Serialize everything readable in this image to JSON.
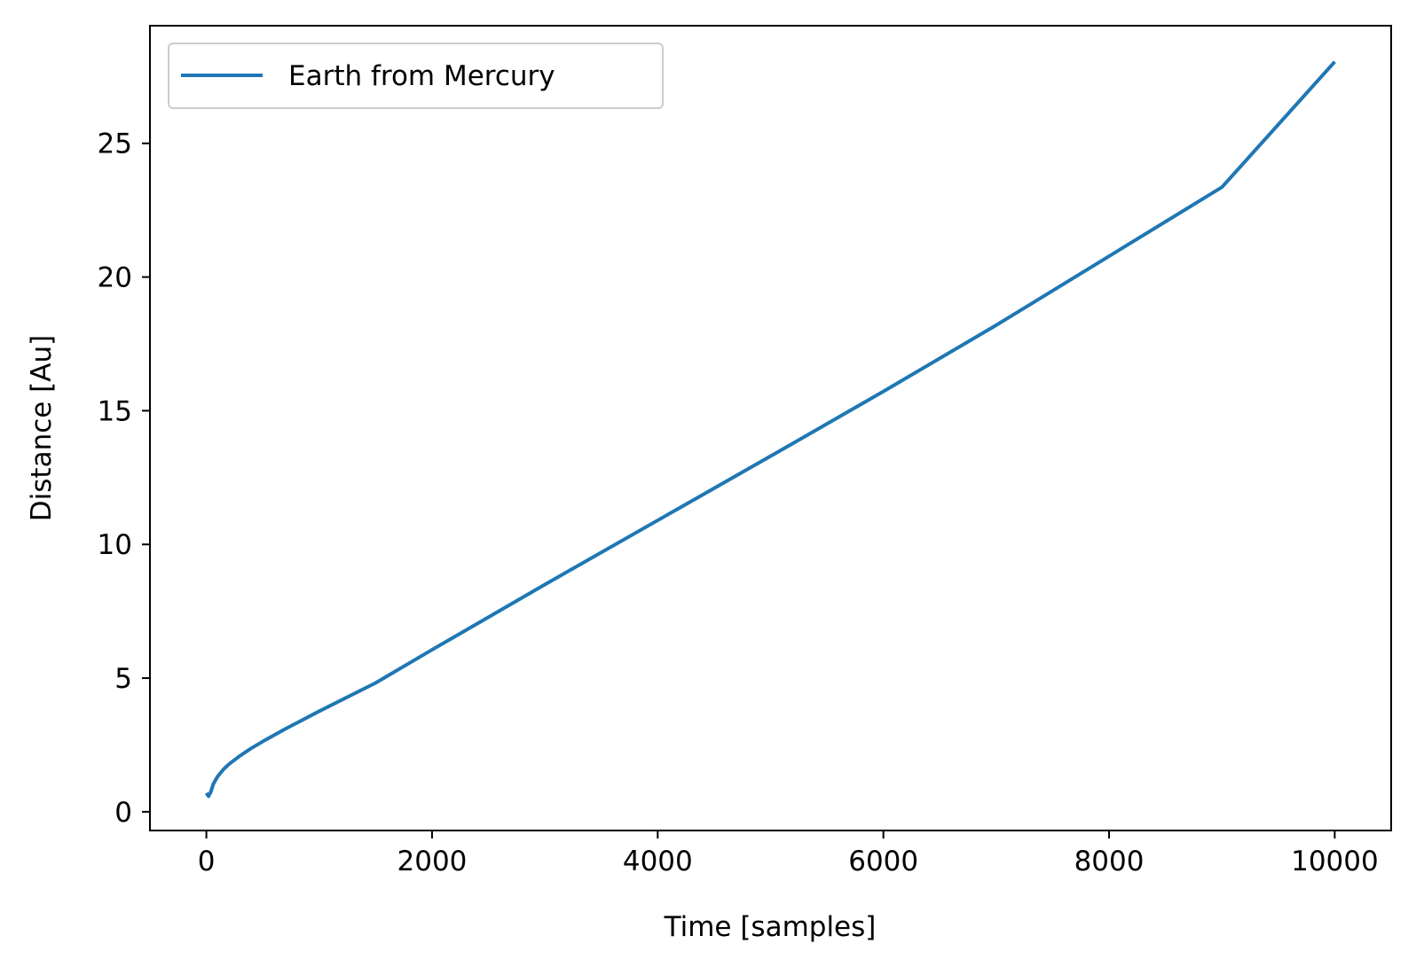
{
  "chart_data": {
    "type": "line",
    "title": "",
    "xlabel": "Time [samples]",
    "ylabel": "Distance [Au]",
    "xlim": [
      -500,
      10500
    ],
    "ylim": [
      -0.7,
      29.4
    ],
    "xticks": [
      0,
      2000,
      4000,
      6000,
      8000,
      10000
    ],
    "yticks": [
      0,
      5,
      10,
      15,
      20,
      25
    ],
    "grid": false,
    "legend_position": "upper-left",
    "series": [
      {
        "name": "Earth from Mercury",
        "color": "#1f77b4",
        "x": [
          0,
          20,
          40,
          60,
          80,
          100,
          150,
          200,
          300,
          400,
          500,
          700,
          1000,
          1500,
          2000,
          3000,
          4000,
          5000,
          6000,
          7000,
          8000,
          9000,
          10000
        ],
        "y": [
          0.7,
          0.58,
          0.75,
          1.02,
          1.18,
          1.32,
          1.58,
          1.78,
          2.1,
          2.38,
          2.63,
          3.1,
          3.76,
          4.82,
          6.06,
          8.5,
          10.9,
          13.3,
          15.72,
          18.2,
          20.78,
          23.36,
          28.05
        ]
      }
    ]
  }
}
